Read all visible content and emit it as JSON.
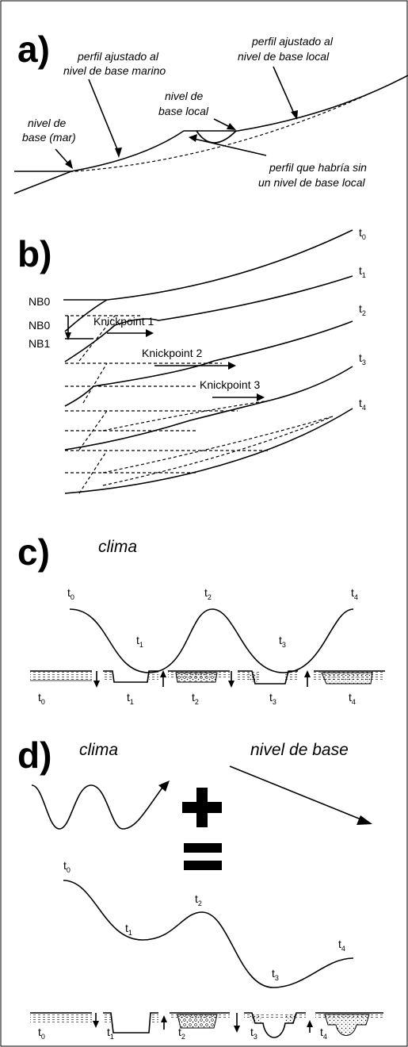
{
  "panel_a": {
    "letter": "a)",
    "label_marine_1": "perfil ajustado al",
    "label_marine_2": "nivel de base marino",
    "label_local_1": "perfil ajustado al",
    "label_local_2": "nivel de base local",
    "label_nbl_1": "nivel de",
    "label_nbl_2": "base local",
    "label_sea_1": "nivel de",
    "label_sea_2": "base (mar)",
    "label_without_1": "perfil que habría sin",
    "label_without_2": "un nivel de base local"
  },
  "panel_b": {
    "letter": "b)",
    "nb0_top": "NB0",
    "nb0": "NB0",
    "nb1": "NB1",
    "knick1": "Knickpoint 1",
    "knick2": "Knickpoint 2",
    "knick3": "Knickpoint 3",
    "t_letter": "t",
    "t0": "0",
    "t1": "1",
    "t2": "2",
    "t3": "3",
    "t4": "4"
  },
  "panel_c": {
    "letter": "c)",
    "clima": "clima",
    "t_letter": "t",
    "t0": "0",
    "t1": "1",
    "t2": "2",
    "t3": "3",
    "t4": "4"
  },
  "panel_d": {
    "letter": "d)",
    "clima": "clima",
    "nivel_de_base": "nivel de base",
    "t_letter": "t",
    "t0": "0",
    "t1": "1",
    "t2": "2",
    "t3": "3",
    "t4": "4"
  }
}
